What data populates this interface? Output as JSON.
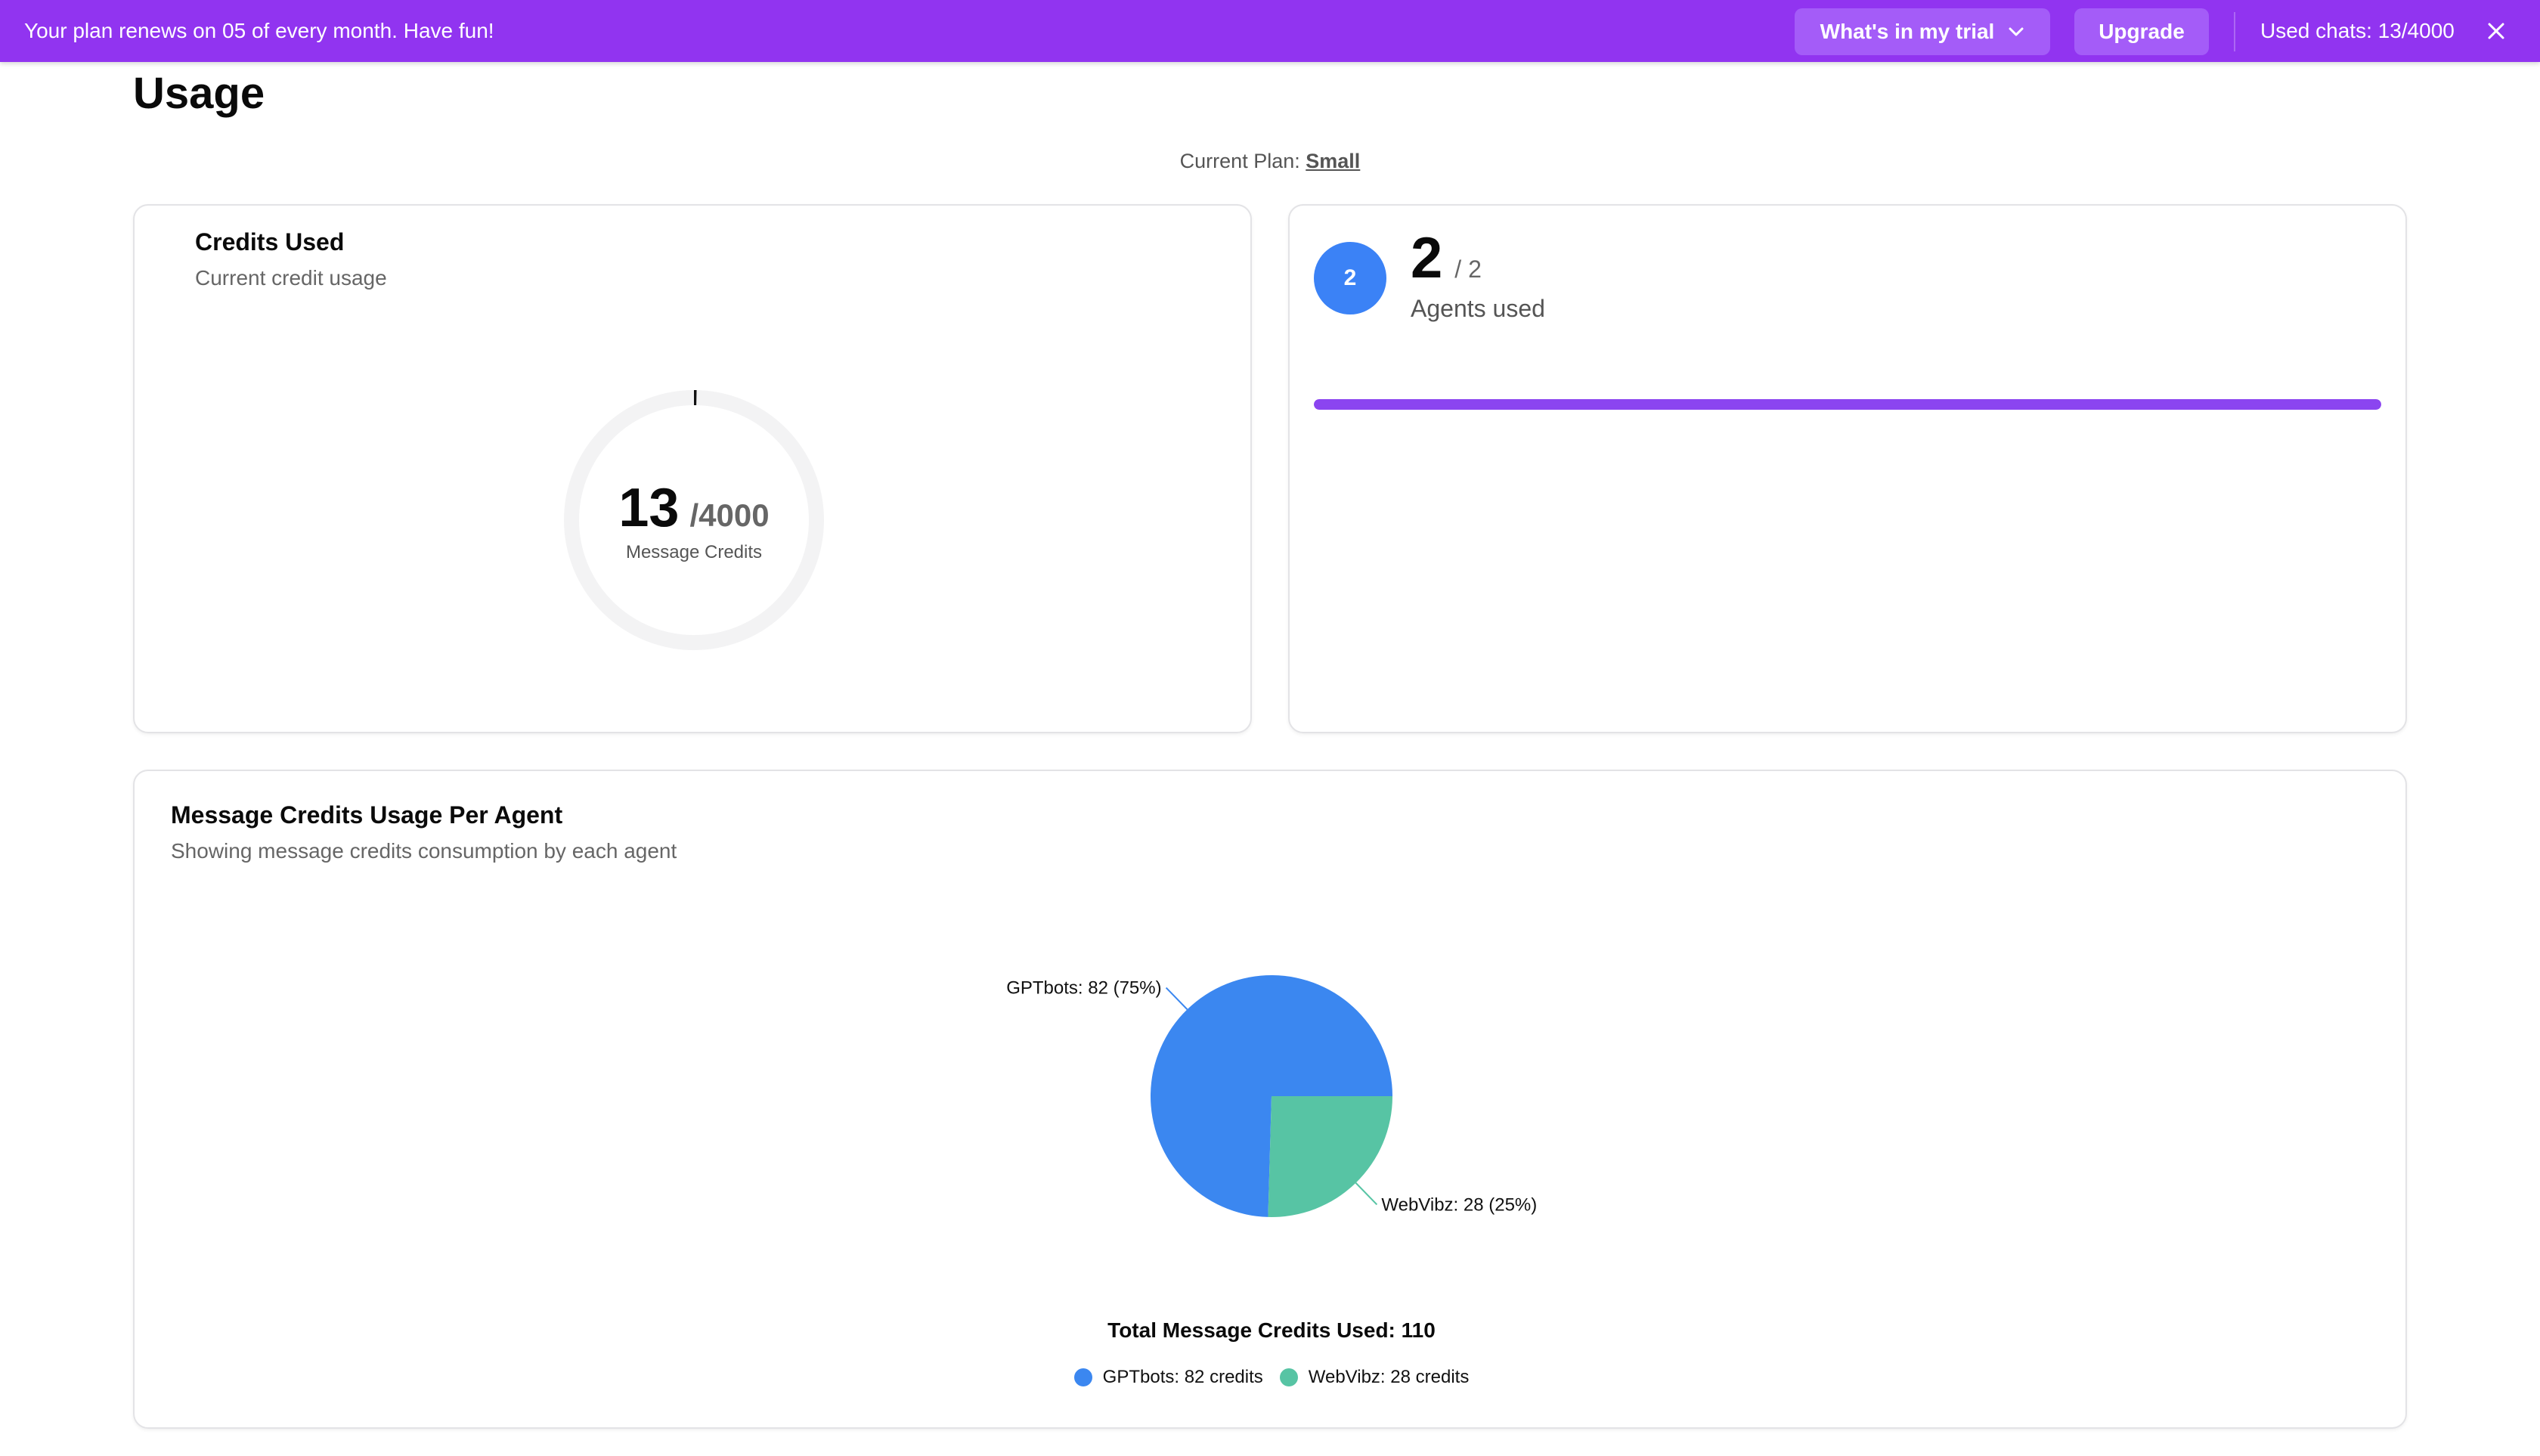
{
  "banner": {
    "message": "Your plan renews on 05 of every month. Have fun!",
    "trial_button": "What's in my trial",
    "upgrade_button": "Upgrade",
    "used_chats": "Used chats: 13/4000",
    "background_color": "#9134f0"
  },
  "page": {
    "title": "Usage",
    "current_plan_label": "Current Plan:",
    "current_plan_value": "Small"
  },
  "credits_card": {
    "title": "Credits Used",
    "subtitle": "Current credit usage",
    "used": "13",
    "total": "/4000",
    "unit_label": "Message Credits",
    "used_value": 13,
    "total_value": 4000
  },
  "agents_card": {
    "badge": "2",
    "used": "2",
    "max": "/ 2",
    "label": "Agents used",
    "fill_fraction": 1.0,
    "bar_color": "#8b45f0"
  },
  "usage_card": {
    "title": "Message Credits Usage Per Agent",
    "subtitle": "Showing message credits consumption by each agent",
    "total_label": "Total Message Credits Used:",
    "total_value": "110",
    "legend": [
      {
        "label": "GPTbots: 82 credits",
        "color": "#3b87f0"
      },
      {
        "label": "WebVibz: 28 credits",
        "color": "#57c4a4"
      }
    ]
  },
  "chart_data": {
    "type": "pie",
    "categories": [
      "GPTbots",
      "WebVibz"
    ],
    "values": [
      82,
      28
    ],
    "slice_labels": [
      "GPTbots: 82 (75%)",
      "WebVibz: 28 (25%)"
    ],
    "colors": [
      "#3b87f0",
      "#57c4a4"
    ],
    "legend_position": "bottom"
  }
}
